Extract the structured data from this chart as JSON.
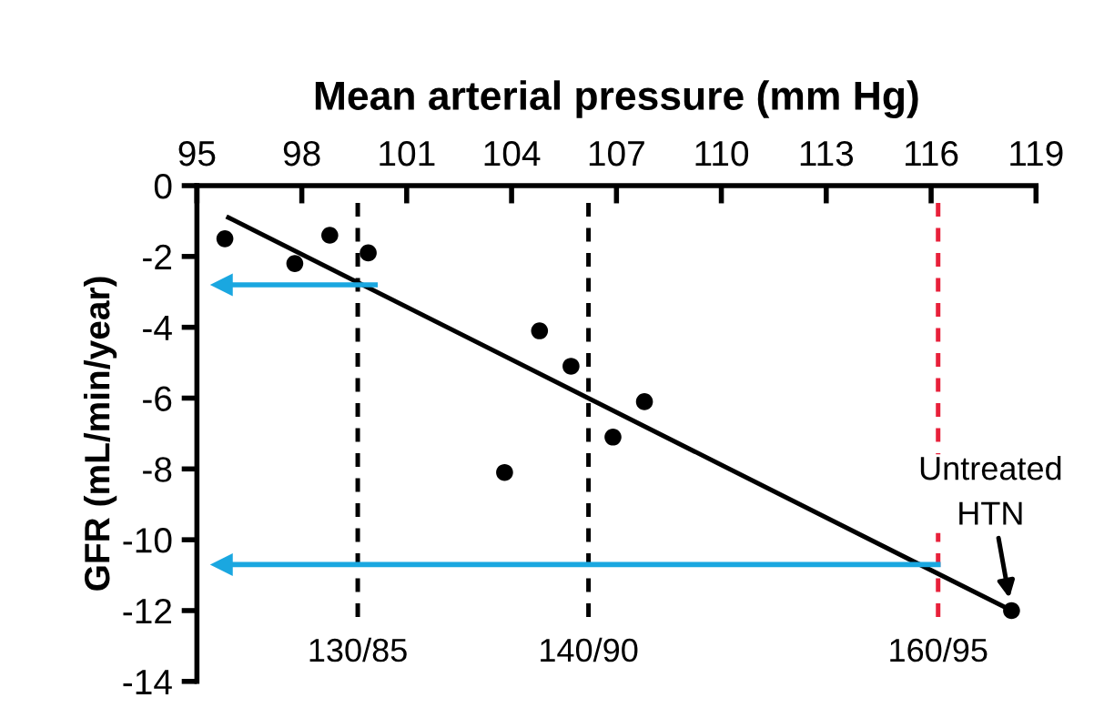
{
  "chart_data": {
    "type": "scatter",
    "xlabel": "Mean arterial pressure (mm Hg)",
    "ylabel": "GFR (mL/min/year)",
    "xlim": [
      95,
      119
    ],
    "xticks": [
      95,
      98,
      101,
      104,
      107,
      110,
      113,
      116,
      119
    ],
    "ylim": [
      -14,
      0
    ],
    "yticks": [
      -14,
      -12,
      -10,
      -8,
      -6,
      -4,
      -2,
      0
    ],
    "marker": "circle",
    "grid": false,
    "series": [
      {
        "color": "#000000",
        "x": [
          95.8,
          97.8,
          98.8,
          99.9,
          104.8,
          105.7,
          103.8,
          106.9,
          107.8,
          118.3
        ],
        "values": [
          -1.5,
          -2.2,
          -1.4,
          -1.9,
          -4.1,
          -5.1,
          -8.1,
          -7.1,
          -6.1,
          -12.0
        ]
      },
      {
        "type": "line",
        "color": "#000000",
        "marker": "none",
        "x": [
          95.9,
          118.3
        ],
        "values": [
          -0.9,
          -12.0
        ]
      },
      {
        "type": "line",
        "color": "#1aa7e0",
        "marker": "triangle",
        "x": [
          100.1,
          95.7
        ],
        "values": [
          -2.8,
          -2.8
        ]
      },
      {
        "type": "line",
        "color": "#1aa7e0",
        "marker": "triangle",
        "x": [
          116.2,
          95.7
        ],
        "values": [
          -10.7,
          -10.7
        ]
      }
    ],
    "ref_lines": [
      {
        "axis": "x",
        "value": 99.6,
        "color": "#000000",
        "line_style": "dashed"
      },
      {
        "axis": "x",
        "value": 106.2,
        "color": "#000000",
        "line_style": "dashed"
      },
      {
        "axis": "x",
        "value": 116.2,
        "color": "#e8203a",
        "line_style": "dashed"
      }
    ],
    "annotations": [
      {
        "text": "Untreated\nHTN",
        "x": 118.3,
        "y": -12.0
      },
      "130/85",
      "140/90",
      "160/95"
    ]
  }
}
